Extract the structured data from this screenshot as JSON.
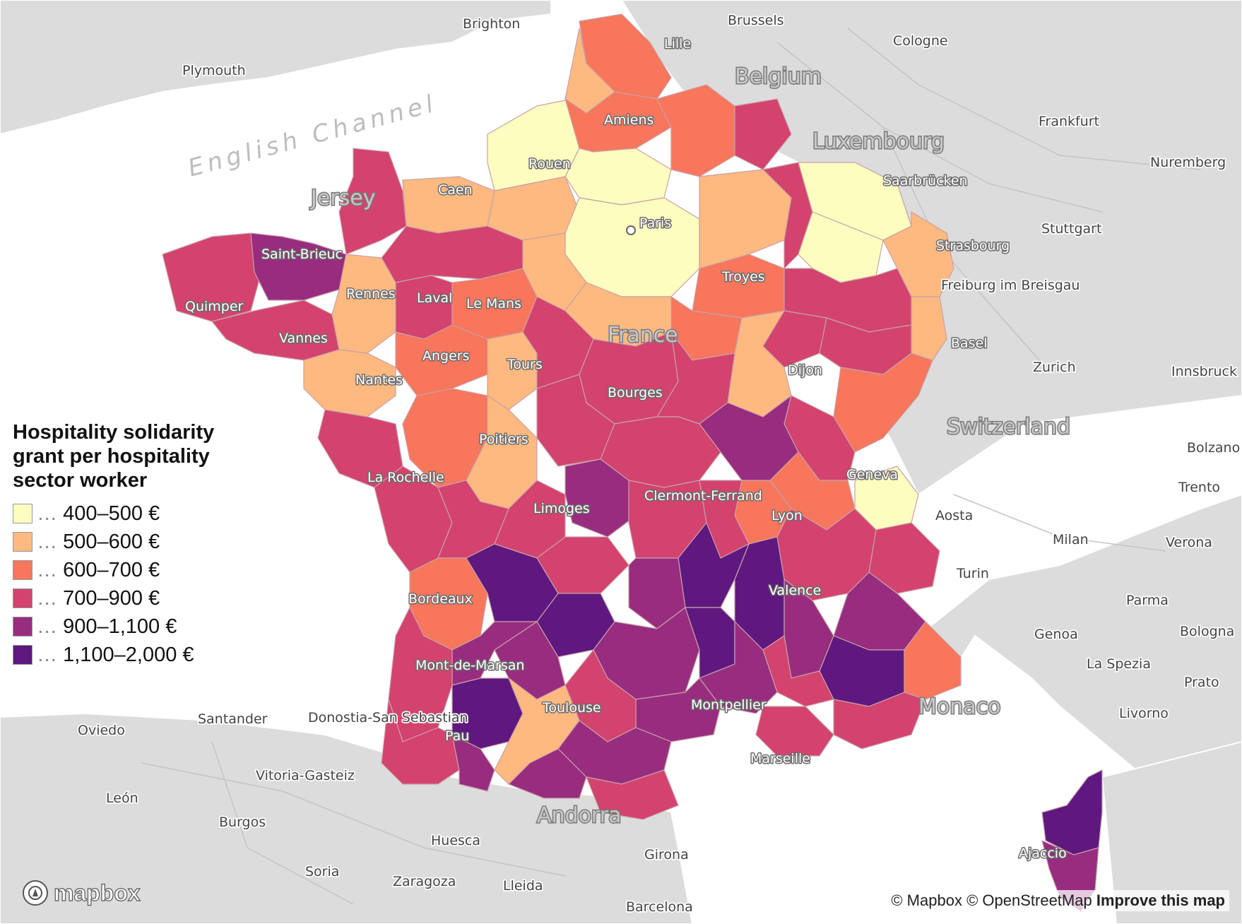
{
  "legend": {
    "title": "Hospitality solidarity grant per hospitality sector worker",
    "items": [
      {
        "label": "400–500 €",
        "color": "#fcfdbf"
      },
      {
        "label": "500–600 €",
        "color": "#fdb97f"
      },
      {
        "label": "600–700 €",
        "color": "#f8765c"
      },
      {
        "label": "700–900 €",
        "color": "#d3436e"
      },
      {
        "label": "900–1,100 €",
        "color": "#982d80"
      },
      {
        "label": "1,100–2,000 €",
        "color": "#5f187f"
      }
    ],
    "prefix": "…"
  },
  "map": {
    "land_color": "#dcdcdc",
    "sea_color": "#ffffff",
    "sea_label": "English Channel",
    "country_labels": [
      "Belgium",
      "Luxembourg",
      "Switzerland",
      "France",
      "Monaco",
      "Andorra",
      "Jersey"
    ],
    "cities_france": [
      "Lille",
      "Amiens",
      "Rouen",
      "Caen",
      "Paris",
      "Saint-Brieuc",
      "Rennes",
      "Laval",
      "Le Mans",
      "Quimper",
      "Vannes",
      "Nantes",
      "Angers",
      "Tours",
      "Troyes",
      "Dijon",
      "Bourges",
      "Poitiers",
      "La Rochelle",
      "Limoges",
      "Clermont-Ferrand",
      "Lyon",
      "Geneva",
      "Valence",
      "Bordeaux",
      "Mont-de-Marsan",
      "Toulouse",
      "Montpellier",
      "Pau",
      "Marseille",
      "Ajaccio",
      "Strasbourg",
      "Saarbrücken",
      "Basel"
    ],
    "cities_other": [
      "Brighton",
      "Plymouth",
      "Brussels",
      "Cologne",
      "Frankfurt",
      "Nuremberg",
      "Stuttgart",
      "Freiburg im Breisgau",
      "Zurich",
      "Innsbruck",
      "Aosta",
      "Milan",
      "Turin",
      "Verona",
      "Parma",
      "Genoa",
      "Bologna",
      "La Spezia",
      "Prato",
      "Livorno",
      "Oviedo",
      "Santander",
      "Donostia-San Sebastian",
      "Vitoria-Gasteiz",
      "León",
      "Burgos",
      "Huesca",
      "Soria",
      "Zaragoza",
      "Lleida",
      "Girona",
      "Barcelona",
      "Trento",
      "Bolzano"
    ]
  },
  "attribution": {
    "mapbox": "© Mapbox",
    "osm": "© OpenStreetMap",
    "improve": "Improve this map"
  },
  "logo": "mapbox"
}
